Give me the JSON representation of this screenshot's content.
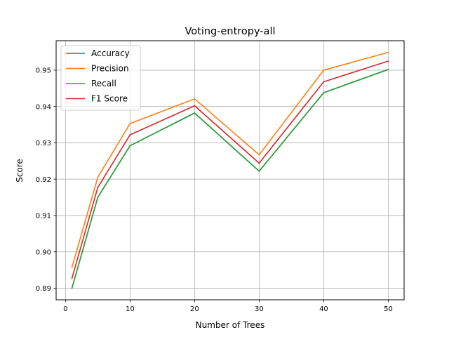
{
  "chart_data": {
    "type": "line",
    "title": "Voting-entropy-all",
    "xlabel": "Number of Trees",
    "ylabel": "Score",
    "x": [
      1,
      5,
      10,
      20,
      30,
      40,
      50
    ],
    "xlim": [
      -1.45,
      52.45
    ],
    "ylim": [
      0.8868,
      0.9581
    ],
    "xticks": [
      0,
      10,
      20,
      30,
      40,
      50
    ],
    "xtick_labels": [
      "0",
      "10",
      "20",
      "30",
      "40",
      "50"
    ],
    "yticks": [
      0.89,
      0.9,
      0.91,
      0.92,
      0.93,
      0.94,
      0.95
    ],
    "ytick_labels": [
      "0.89",
      "0.90",
      "0.91",
      "0.92",
      "0.93",
      "0.94",
      "0.95"
    ],
    "grid": true,
    "legend_position": "top-left",
    "series": [
      {
        "name": "Accuracy",
        "color": "#1f77b4",
        "values": [
          0.89,
          0.915,
          0.9292,
          0.9382,
          0.9222,
          0.9438,
          0.9502
        ]
      },
      {
        "name": "Precision",
        "color": "#ff7f0e",
        "values": [
          0.8957,
          0.9205,
          0.9353,
          0.9421,
          0.9267,
          0.95,
          0.9549
        ]
      },
      {
        "name": "Recall",
        "color": "#2ca02c",
        "values": [
          0.89,
          0.915,
          0.9292,
          0.9382,
          0.9222,
          0.9438,
          0.9502
        ]
      },
      {
        "name": "F1 Score",
        "color": "#d62728",
        "values": [
          0.8927,
          0.9177,
          0.9322,
          0.9402,
          0.9244,
          0.9468,
          0.9525
        ]
      }
    ]
  }
}
